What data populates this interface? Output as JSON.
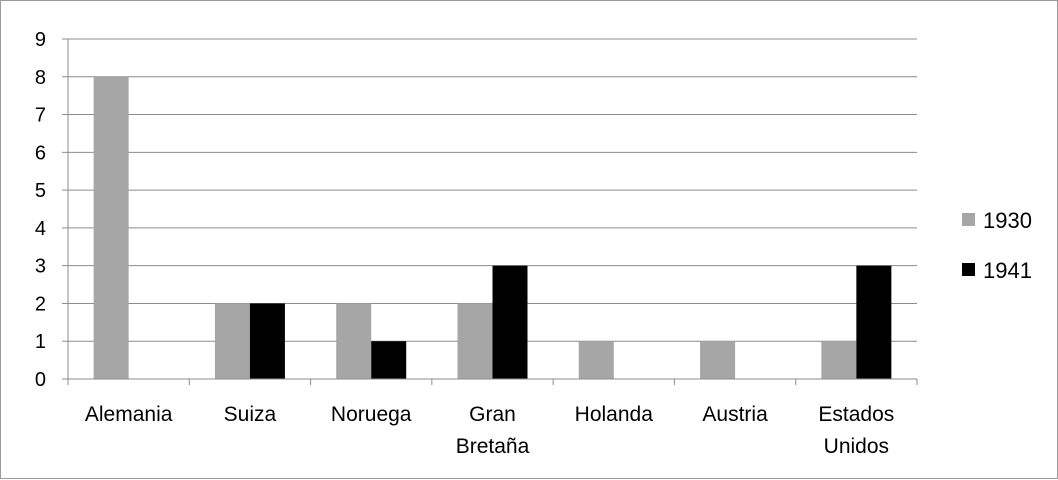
{
  "chart_data": {
    "type": "bar",
    "title": "",
    "xlabel": "",
    "ylabel": "",
    "categories": [
      [
        "Alemania"
      ],
      [
        "Suiza"
      ],
      [
        "Noruega"
      ],
      [
        "Gran",
        "Bretaña"
      ],
      [
        "Holanda"
      ],
      [
        "Austria"
      ],
      [
        "Estados",
        "Unidos"
      ]
    ],
    "series": [
      {
        "name": "1930",
        "color": "#a6a6a6",
        "values": [
          8,
          2,
          2,
          2,
          1,
          1,
          1
        ]
      },
      {
        "name": "1941",
        "color": "#000000",
        "values": [
          0,
          2,
          1,
          3,
          0,
          0,
          3
        ]
      }
    ],
    "ylim": [
      0,
      9
    ],
    "yticks": [
      0,
      1,
      2,
      3,
      4,
      5,
      6,
      7,
      8,
      9
    ],
    "grid": true,
    "legend_position": "right"
  }
}
